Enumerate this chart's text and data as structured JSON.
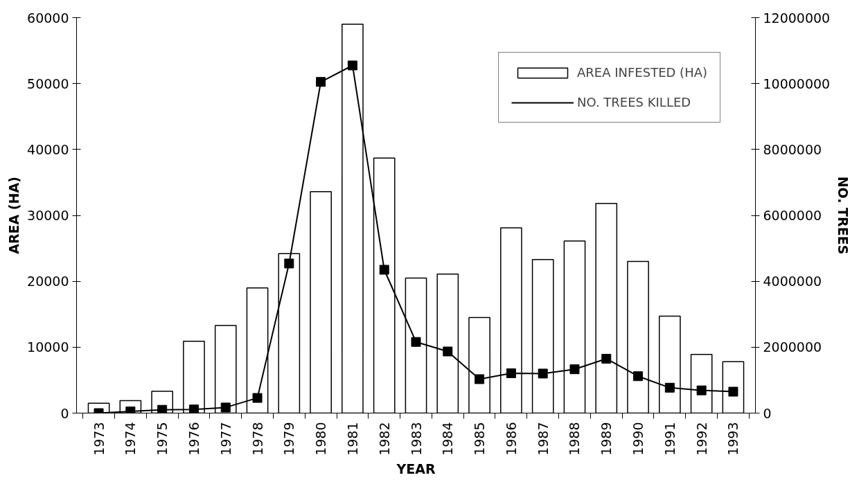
{
  "chart_data": {
    "type": "bar",
    "xlabel": "YEAR",
    "ylabel": "AREA (HA)",
    "y2label": "NO. TREES",
    "categories": [
      "1973",
      "1974",
      "1975",
      "1976",
      "1977",
      "1978",
      "1979",
      "1980",
      "1981",
      "1982",
      "1983",
      "1984",
      "1985",
      "1986",
      "1987",
      "1988",
      "1989",
      "1990",
      "1991",
      "1992",
      "1993"
    ],
    "series": [
      {
        "name": "AREA INFESTED (HA)",
        "color": "#ffffff",
        "values": [
          1500,
          1900,
          3300,
          10900,
          13300,
          19000,
          24200,
          33600,
          59000,
          38700,
          20500,
          21100,
          14500,
          28100,
          23300,
          26100,
          31800,
          23000,
          14700,
          8900,
          7800
        ]
      },
      {
        "name": "NO. TREES KILLED",
        "type": "line",
        "axis": "y2",
        "color": "#000000",
        "marker": "square",
        "values": [
          0,
          50000,
          100000,
          110000,
          170000,
          460000,
          4540000,
          10050000,
          10550000,
          4350000,
          2160000,
          1870000,
          1030000,
          1210000,
          1200000,
          1330000,
          1650000,
          1120000,
          770000,
          690000,
          650000
        ]
      }
    ],
    "ylim": [
      0,
      60000
    ],
    "yticks": [
      0,
      10000,
      20000,
      30000,
      40000,
      50000,
      60000
    ],
    "y2lim": [
      0,
      12000000
    ],
    "y2ticks": [
      0,
      2000000,
      4000000,
      6000000,
      8000000,
      10000000,
      12000000
    ],
    "grid": false,
    "legend": "top right"
  }
}
